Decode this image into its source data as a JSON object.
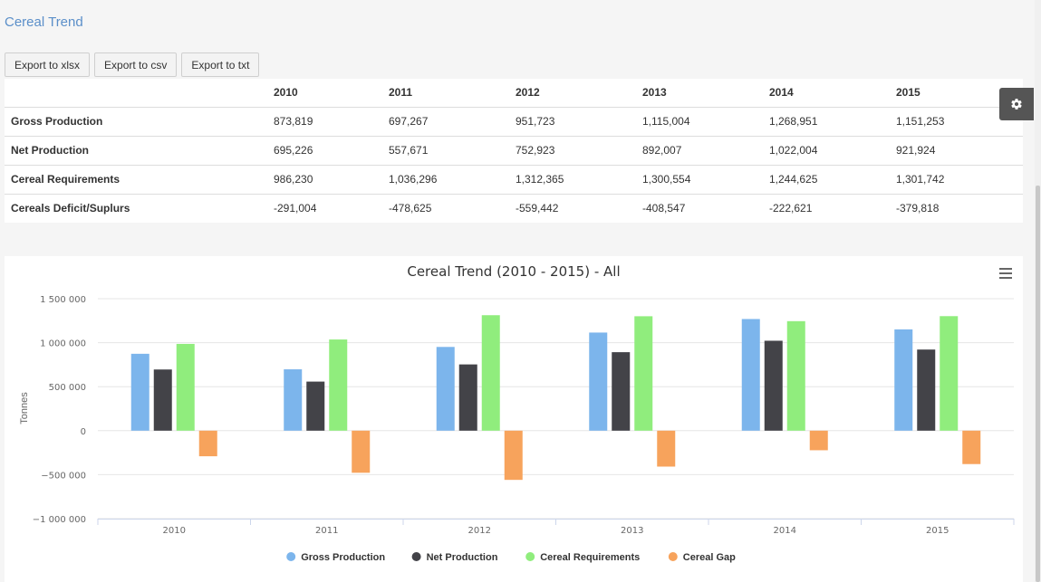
{
  "page": {
    "title": "Cereal Trend"
  },
  "export_buttons": [
    "Export to xlsx",
    "Export to csv",
    "Export to txt"
  ],
  "table": {
    "columns": [
      "",
      "2010",
      "2011",
      "2012",
      "2013",
      "2014",
      "2015"
    ],
    "rows": [
      {
        "label": "Gross Production",
        "values": [
          "873,819",
          "697,267",
          "951,723",
          "1,115,004",
          "1,268,951",
          "1,151,253"
        ]
      },
      {
        "label": "Net Production",
        "values": [
          "695,226",
          "557,671",
          "752,923",
          "892,007",
          "1,022,004",
          "921,924"
        ]
      },
      {
        "label": "Cereal Requirements",
        "values": [
          "986,230",
          "1,036,296",
          "1,312,365",
          "1,300,554",
          "1,244,625",
          "1,301,742"
        ]
      },
      {
        "label": "Cereals Deficit/Suplurs",
        "values": [
          "-291,004",
          "-478,625",
          "-559,442",
          "-408,547",
          "-222,621",
          "-379,818"
        ]
      }
    ]
  },
  "icons": {
    "settings": "gear-icon",
    "chart_menu": "hamburger-menu-icon"
  },
  "chart_data": {
    "type": "bar",
    "title": "Cereal Trend (2010 - 2015) - All",
    "xlabel": "",
    "ylabel": "Tonnes",
    "categories": [
      "2010",
      "2011",
      "2012",
      "2013",
      "2014",
      "2015"
    ],
    "ylim": [
      -1000000,
      1500000
    ],
    "yticks": [
      -1000000,
      -500000,
      0,
      500000,
      1000000,
      1500000
    ],
    "ytick_labels": [
      "−1 000 000",
      "−500 000",
      "0",
      "500 000",
      "1 000 000",
      "1 500 000"
    ],
    "grid": true,
    "legend_position": "bottom-center",
    "series": [
      {
        "name": "Gross Production",
        "color": "#7cb5ec",
        "values": [
          873819,
          697267,
          951723,
          1115004,
          1268951,
          1151253
        ]
      },
      {
        "name": "Net Production",
        "color": "#434348",
        "values": [
          695226,
          557671,
          752923,
          892007,
          1022004,
          921924
        ]
      },
      {
        "name": "Cereal Requirements",
        "color": "#90ed7d",
        "values": [
          986230,
          1036296,
          1312365,
          1300554,
          1244625,
          1301742
        ]
      },
      {
        "name": "Cereal Gap",
        "color": "#f7a35c",
        "values": [
          -291004,
          -478625,
          -559442,
          -408547,
          -222621,
          -379818
        ]
      }
    ]
  }
}
